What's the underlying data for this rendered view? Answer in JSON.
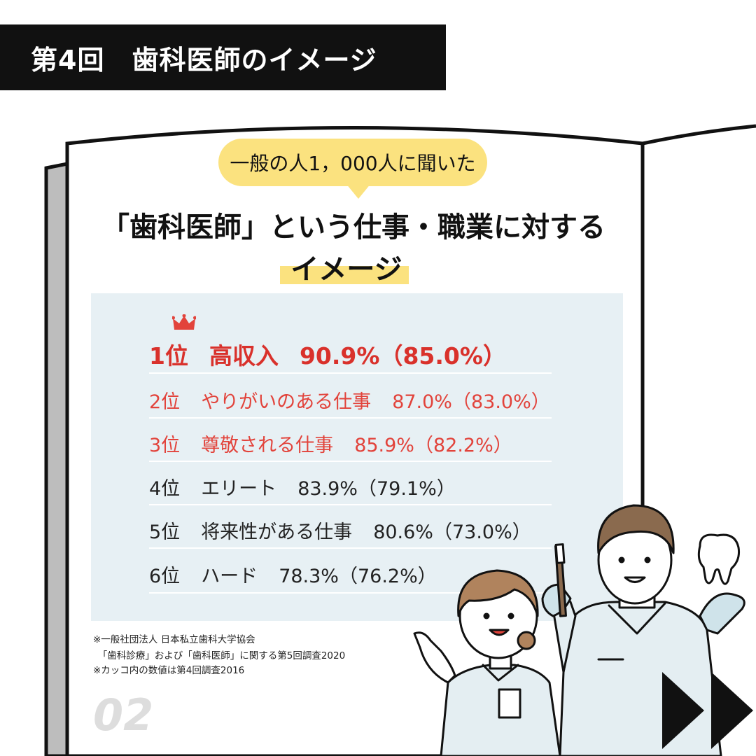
{
  "header": {
    "title": "第4回　歯科医師のイメージ"
  },
  "bubble": {
    "text": "一般の人1，000人に聞いた"
  },
  "headline": {
    "line1": "「歯科医師」という仕事・職業に対する",
    "line2": "イメージ"
  },
  "ranking": [
    {
      "rank": "1位",
      "label": "高収入",
      "value": "90.9%（85.0%）"
    },
    {
      "rank": "2位",
      "label": "やりがいのある仕事",
      "value": "87.0%（83.0%）"
    },
    {
      "rank": "3位",
      "label": "尊敬される仕事",
      "value": "85.9%（82.2%）"
    },
    {
      "rank": "4位",
      "label": "エリート",
      "value": "83.9%（79.1%）"
    },
    {
      "rank": "5位",
      "label": "将来性がある仕事",
      "value": "80.6%（73.0%）"
    },
    {
      "rank": "6位",
      "label": "ハード",
      "value": "78.3%（76.2%）"
    }
  ],
  "notes": [
    "※一般社団法人 日本私立歯科大学協会",
    "　「歯科診療」および「歯科医師」に関する第5回調査2020",
    "※カッコ内の数値は第4回調査2016"
  ],
  "page_number": "02",
  "colors": {
    "accent_red": "#d9312b",
    "highlight_yellow": "#fbe27f",
    "panel": "#e7f0f4"
  },
  "icons": [
    "crown-icon",
    "next-arrow-icon",
    "tooth-icon",
    "toothbrush-icon"
  ]
}
